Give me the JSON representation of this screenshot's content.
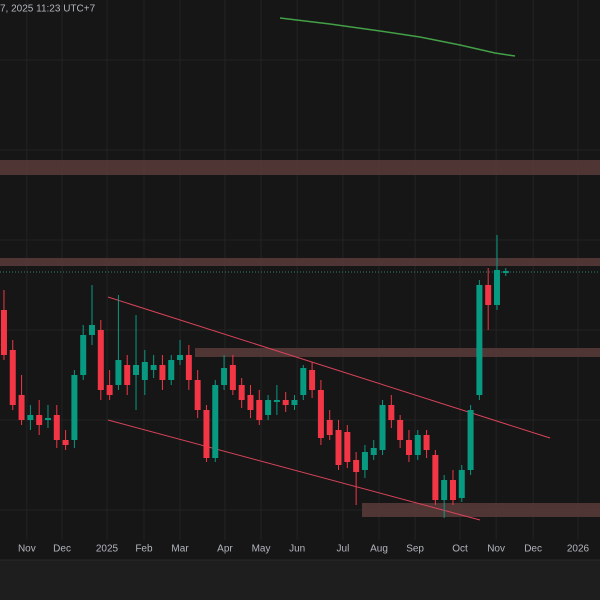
{
  "chart_data": {
    "type": "candlestick",
    "header": "7, 2025 11:23 UTC+7",
    "x": [
      0,
      1,
      2,
      3,
      4,
      5,
      6,
      7,
      8,
      9,
      10,
      11,
      12,
      13,
      14,
      15,
      16,
      17,
      18,
      19,
      20,
      21,
      22,
      23,
      24,
      25,
      26,
      27,
      28,
      29,
      30,
      31,
      32,
      33,
      34,
      35,
      36,
      37,
      38,
      39,
      40,
      41,
      42,
      43,
      44,
      45,
      46,
      47,
      48,
      49,
      50,
      51,
      52,
      53,
      54,
      55,
      56,
      57
    ],
    "open": [
      290,
      250,
      205,
      180,
      185,
      180,
      185,
      160,
      160,
      225,
      265,
      270,
      215,
      215,
      235,
      225,
      220,
      230,
      235,
      220,
      240,
      245,
      220,
      190,
      142,
      215,
      235,
      215,
      205,
      200,
      185,
      198,
      200,
      195,
      205,
      230,
      210,
      180,
      170,
      168,
      140,
      130,
      145,
      150,
      195,
      180,
      160,
      145,
      165,
      145,
      100,
      120,
      102,
      130,
      205,
      315,
      295,
      327
    ],
    "high": [
      310,
      260,
      225,
      195,
      200,
      195,
      195,
      170,
      230,
      275,
      315,
      280,
      230,
      305,
      245,
      285,
      250,
      245,
      245,
      245,
      260,
      255,
      230,
      195,
      220,
      245,
      245,
      222,
      215,
      210,
      205,
      215,
      208,
      205,
      235,
      238,
      220,
      190,
      180,
      175,
      148,
      155,
      160,
      200,
      205,
      185,
      170,
      170,
      170,
      150,
      125,
      130,
      135,
      195,
      320,
      332,
      365,
      332
    ],
    "low": [
      240,
      190,
      175,
      170,
      165,
      172,
      152,
      150,
      152,
      220,
      255,
      200,
      200,
      210,
      205,
      190,
      205,
      222,
      210,
      215,
      235,
      210,
      182,
      138,
      138,
      210,
      205,
      192,
      182,
      175,
      180,
      185,
      188,
      190,
      200,
      202,
      155,
      160,
      130,
      132,
      95,
      122,
      140,
      145,
      172,
      152,
      138,
      140,
      142,
      95,
      82,
      95,
      98,
      125,
      200,
      270,
      290,
      324
    ],
    "close": [
      245,
      195,
      180,
      185,
      175,
      182,
      160,
      155,
      225,
      265,
      275,
      210,
      205,
      240,
      215,
      235,
      238,
      235,
      220,
      240,
      245,
      220,
      190,
      142,
      215,
      232,
      210,
      200,
      190,
      180,
      200,
      200,
      195,
      200,
      232,
      210,
      162,
      165,
      135,
      138,
      128,
      148,
      152,
      195,
      180,
      160,
      145,
      165,
      150,
      100,
      120,
      100,
      130,
      190,
      315,
      295,
      330,
      329
    ],
    "up_color": "#089981",
    "down_color": "#f23645",
    "xlim": [
      -0.45,
      67.7
    ],
    "ylim": [
      60,
      600
    ],
    "xticks": [
      {
        "value": 2.6,
        "label": "Nov"
      },
      {
        "value": 6.6,
        "label": "Dec"
      },
      {
        "value": 11.7,
        "label": "2025"
      },
      {
        "value": 15.9,
        "label": "Feb"
      },
      {
        "value": 20,
        "label": "Mar"
      },
      {
        "value": 25.1,
        "label": "Apr"
      },
      {
        "value": 29.2,
        "label": "May"
      },
      {
        "value": 33.3,
        "label": "Jun"
      },
      {
        "value": 38.5,
        "label": "Jul"
      },
      {
        "value": 42.6,
        "label": "Aug"
      },
      {
        "value": 46.7,
        "label": "Sep"
      },
      {
        "value": 51.8,
        "label": "Oct"
      },
      {
        "value": 55.9,
        "label": "Nov"
      },
      {
        "value": 60.1,
        "label": "Dec"
      },
      {
        "value": 65.2,
        "label": "2026"
      }
    ],
    "grid": true
  }
}
